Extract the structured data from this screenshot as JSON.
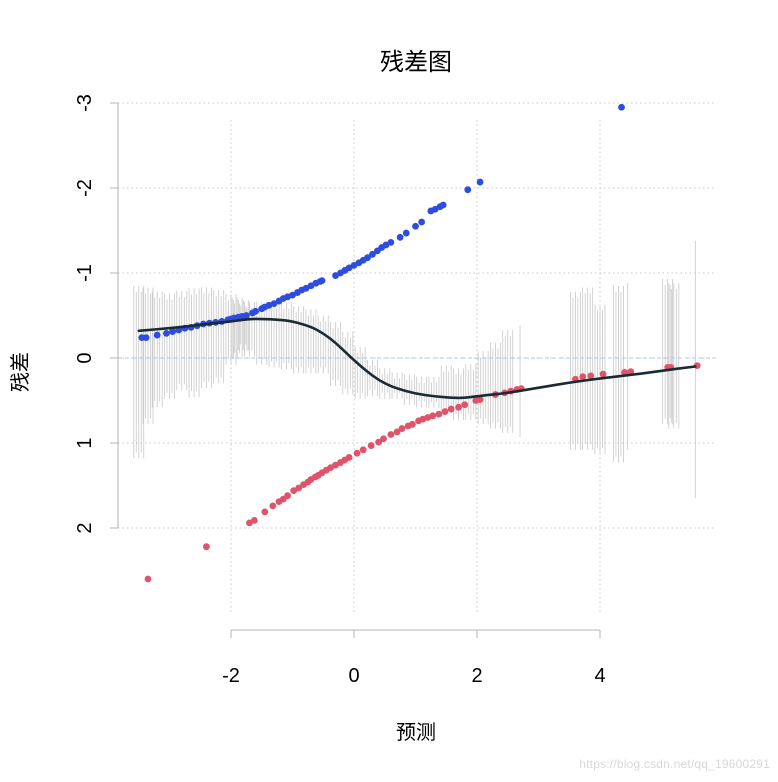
{
  "watermark": "https://blog.csdn.net/qq_19600291",
  "chart_data": {
    "type": "scatter",
    "title": "残差图",
    "xlabel": "预测",
    "ylabel": "残差",
    "xlim": [
      -4.0,
      5.8
    ],
    "ylim": [
      -3.0,
      2.5
    ],
    "xticks": [
      -2,
      0,
      2,
      4
    ],
    "yticks": [
      -3,
      -2,
      -1,
      0,
      1,
      2
    ],
    "grid": true,
    "zero_line": 0,
    "colors": {
      "positive": "#DF536B",
      "negative": "#2E4DE0",
      "smooth": "#1B2A33",
      "band": "#C8C8C8",
      "grid": "#C8C8C8",
      "zero_line": "#A9C8E8"
    },
    "series": [
      {
        "points": [
          [
            -3.35,
            2.6
          ],
          [
            -2.4,
            2.22
          ],
          [
            -1.7,
            1.94
          ],
          [
            -1.62,
            1.91
          ],
          [
            -1.45,
            1.81
          ],
          [
            -1.32,
            1.74
          ],
          [
            -1.22,
            1.69
          ],
          [
            -1.15,
            1.66
          ],
          [
            -1.08,
            1.62
          ],
          [
            -0.98,
            1.56
          ],
          [
            -0.9,
            1.53
          ],
          [
            -0.82,
            1.49
          ],
          [
            -0.75,
            1.46
          ],
          [
            -0.7,
            1.43
          ],
          [
            -0.63,
            1.4
          ],
          [
            -0.58,
            1.38
          ],
          [
            -0.52,
            1.35
          ],
          [
            -0.45,
            1.32
          ],
          [
            -0.38,
            1.29
          ],
          [
            -0.3,
            1.26
          ],
          [
            -0.22,
            1.23
          ],
          [
            -0.15,
            1.2
          ],
          [
            -0.08,
            1.17
          ],
          [
            0.05,
            1.12
          ],
          [
            0.15,
            1.08
          ],
          [
            0.28,
            1.03
          ],
          [
            0.4,
            0.99
          ],
          [
            0.48,
            0.95
          ],
          [
            0.6,
            0.9
          ],
          [
            0.7,
            0.87
          ],
          [
            0.78,
            0.83
          ],
          [
            0.88,
            0.8
          ],
          [
            0.95,
            0.78
          ],
          [
            1.05,
            0.74
          ],
          [
            1.12,
            0.72
          ],
          [
            1.2,
            0.7
          ],
          [
            1.28,
            0.68
          ],
          [
            1.38,
            0.66
          ],
          [
            1.48,
            0.63
          ],
          [
            1.58,
            0.6
          ],
          [
            1.7,
            0.58
          ],
          [
            1.8,
            0.55
          ],
          [
            1.98,
            0.5
          ],
          [
            2.05,
            0.49
          ],
          [
            2.3,
            0.43
          ],
          [
            2.45,
            0.41
          ],
          [
            2.55,
            0.39
          ],
          [
            2.65,
            0.37
          ],
          [
            2.72,
            0.36
          ],
          [
            3.6,
            0.25
          ],
          [
            3.72,
            0.22
          ],
          [
            3.85,
            0.21
          ],
          [
            4.05,
            0.19
          ],
          [
            4.4,
            0.17
          ],
          [
            4.5,
            0.16
          ],
          [
            5.1,
            0.11
          ],
          [
            5.15,
            0.11
          ],
          [
            5.58,
            0.09
          ]
        ]
      },
      {
        "points": [
          [
            -3.45,
            -0.24
          ],
          [
            -3.38,
            -0.24
          ],
          [
            -3.2,
            -0.27
          ],
          [
            -3.05,
            -0.29
          ],
          [
            -2.95,
            -0.31
          ],
          [
            -2.85,
            -0.33
          ],
          [
            -2.75,
            -0.35
          ],
          [
            -2.65,
            -0.36
          ],
          [
            -2.55,
            -0.38
          ],
          [
            -2.45,
            -0.4
          ],
          [
            -2.35,
            -0.41
          ],
          [
            -2.25,
            -0.42
          ],
          [
            -2.15,
            -0.43
          ],
          [
            -2.05,
            -0.45
          ],
          [
            -2.0,
            -0.46
          ],
          [
            -1.95,
            -0.47
          ],
          [
            -1.88,
            -0.48
          ],
          [
            -1.82,
            -0.49
          ],
          [
            -1.75,
            -0.5
          ],
          [
            -1.65,
            -0.53
          ],
          [
            -1.6,
            -0.55
          ],
          [
            -1.5,
            -0.58
          ],
          [
            -1.45,
            -0.6
          ],
          [
            -1.38,
            -0.62
          ],
          [
            -1.3,
            -0.64
          ],
          [
            -1.22,
            -0.67
          ],
          [
            -1.15,
            -0.7
          ],
          [
            -1.08,
            -0.72
          ],
          [
            -1.0,
            -0.74
          ],
          [
            -0.92,
            -0.77
          ],
          [
            -0.85,
            -0.8
          ],
          [
            -0.78,
            -0.82
          ],
          [
            -0.7,
            -0.85
          ],
          [
            -0.62,
            -0.88
          ],
          [
            -0.55,
            -0.9
          ],
          [
            -0.52,
            -0.91
          ],
          [
            -0.3,
            -0.97
          ],
          [
            -0.22,
            -1.0
          ],
          [
            -0.15,
            -1.03
          ],
          [
            -0.08,
            -1.06
          ],
          [
            0.0,
            -1.09
          ],
          [
            0.08,
            -1.12
          ],
          [
            0.15,
            -1.15
          ],
          [
            0.22,
            -1.18
          ],
          [
            0.3,
            -1.22
          ],
          [
            0.38,
            -1.26
          ],
          [
            0.45,
            -1.3
          ],
          [
            0.52,
            -1.33
          ],
          [
            0.6,
            -1.36
          ],
          [
            0.75,
            -1.42
          ],
          [
            0.85,
            -1.47
          ],
          [
            1.0,
            -1.55
          ],
          [
            1.1,
            -1.6
          ],
          [
            1.25,
            -1.73
          ],
          [
            1.32,
            -1.75
          ],
          [
            1.4,
            -1.78
          ],
          [
            1.45,
            -1.8
          ],
          [
            1.85,
            -1.98
          ],
          [
            2.05,
            -2.07
          ],
          [
            4.35,
            -2.95
          ]
        ]
      }
    ],
    "smooth_line": [
      [
        -3.5,
        -0.32
      ],
      [
        -3.0,
        -0.35
      ],
      [
        -2.5,
        -0.39
      ],
      [
        -2.0,
        -0.43
      ],
      [
        -1.7,
        -0.46
      ],
      [
        -1.5,
        -0.46
      ],
      [
        -1.2,
        -0.45
      ],
      [
        -1.0,
        -0.43
      ],
      [
        -0.7,
        -0.37
      ],
      [
        -0.5,
        -0.29
      ],
      [
        -0.3,
        -0.18
      ],
      [
        -0.1,
        -0.04
      ],
      [
        0.1,
        0.09
      ],
      [
        0.3,
        0.21
      ],
      [
        0.5,
        0.3
      ],
      [
        0.7,
        0.36
      ],
      [
        1.0,
        0.42
      ],
      [
        1.3,
        0.45
      ],
      [
        1.6,
        0.47
      ],
      [
        1.8,
        0.47
      ],
      [
        2.0,
        0.45
      ],
      [
        2.5,
        0.41
      ],
      [
        3.0,
        0.35
      ],
      [
        3.5,
        0.29
      ],
      [
        4.0,
        0.24
      ],
      [
        4.5,
        0.2
      ],
      [
        5.0,
        0.15
      ],
      [
        5.55,
        0.1
      ]
    ],
    "band": [
      [
        -3.5,
        -0.82,
        1.15
      ],
      [
        -3.35,
        -0.8,
        0.75
      ],
      [
        -3.2,
        -0.75,
        0.55
      ],
      [
        -3.0,
        -0.73,
        0.45
      ],
      [
        -2.8,
        -0.76,
        0.35
      ],
      [
        -2.6,
        -0.79,
        0.43
      ],
      [
        -2.4,
        -0.8,
        0.32
      ],
      [
        -2.2,
        -0.77,
        0.27
      ],
      [
        -2.0,
        -0.72,
        0.05
      ],
      [
        -1.9,
        -0.68,
        -0.02
      ],
      [
        -1.8,
        -0.65,
        -0.12
      ],
      [
        -1.7,
        -0.63,
        -0.05
      ],
      [
        -1.5,
        -0.63,
        0.05
      ],
      [
        -1.3,
        -0.62,
        0.08
      ],
      [
        -1.1,
        -0.62,
        0.1
      ],
      [
        -0.9,
        -0.58,
        0.15
      ],
      [
        -0.7,
        -0.54,
        0.15
      ],
      [
        -0.5,
        -0.47,
        0.15
      ],
      [
        -0.3,
        -0.39,
        0.3
      ],
      [
        -0.1,
        -0.28,
        0.4
      ],
      [
        0.1,
        -0.1,
        0.45
      ],
      [
        0.3,
        0.05,
        0.42
      ],
      [
        0.5,
        0.15,
        0.45
      ],
      [
        0.7,
        0.2,
        0.45
      ],
      [
        0.9,
        0.22,
        0.52
      ],
      [
        1.1,
        0.25,
        0.55
      ],
      [
        1.3,
        0.25,
        0.56
      ],
      [
        1.5,
        0.12,
        0.62
      ],
      [
        1.7,
        0.15,
        0.7
      ],
      [
        1.9,
        0.1,
        0.7
      ],
      [
        2.1,
        -0.05,
        0.75
      ],
      [
        2.3,
        -0.15,
        0.8
      ],
      [
        2.5,
        -0.3,
        0.85
      ],
      [
        2.7,
        -0.35,
        0.9
      ],
      [
        3.6,
        -0.75,
        1.05
      ],
      [
        3.8,
        -0.8,
        1.05
      ],
      [
        4.0,
        -0.6,
        1.1
      ],
      [
        4.3,
        -0.82,
        1.2
      ],
      [
        4.45,
        -0.85,
        1.05
      ],
      [
        5.1,
        -0.9,
        0.75
      ],
      [
        5.2,
        -0.85,
        0.8
      ],
      [
        5.55,
        -1.35,
        1.62
      ]
    ]
  }
}
